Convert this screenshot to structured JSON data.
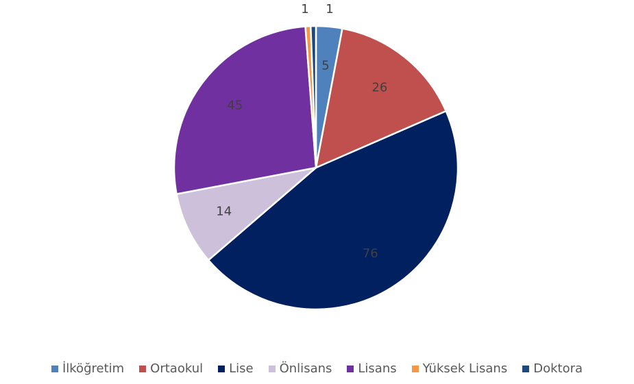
{
  "chart_data": {
    "type": "pie",
    "categories": [
      "İlköğretim",
      "Ortaokul",
      "Lise",
      "Önlisans",
      "Lisans",
      "Yüksek Lisans",
      "Doktora"
    ],
    "values": [
      5,
      26,
      76,
      14,
      45,
      1,
      1
    ],
    "colors": [
      "#4f81bd",
      "#c0504d",
      "#002060",
      "#ccc0da",
      "#7030a0",
      "#f79646",
      "#1f497d"
    ]
  }
}
